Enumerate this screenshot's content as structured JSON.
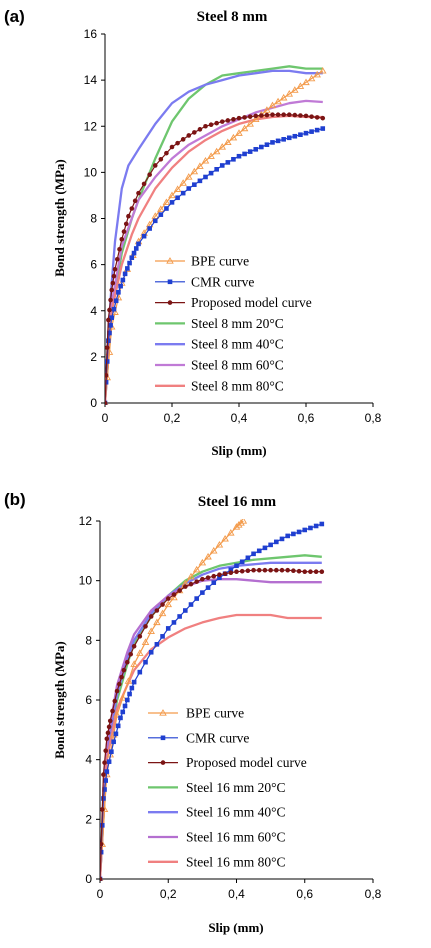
{
  "chart_data": [
    {
      "type": "line",
      "panel_label": "(a)",
      "title": "Steel 8 mm",
      "xlabel": "Slip (mm)",
      "ylabel": "Bond strength (MPa)",
      "xlim": [
        0,
        0.8
      ],
      "ylim": [
        0,
        16
      ],
      "x_ticks": [
        "0",
        "0,2",
        "0,4",
        "0,6",
        "0,8"
      ],
      "y_ticks": [
        "0",
        "2",
        "4",
        "6",
        "8",
        "10",
        "12",
        "14",
        "16"
      ],
      "legend_position": "center",
      "series": [
        {
          "name": "BPE curve",
          "color": "#f39a4a",
          "marker": "open-triangle",
          "x": [
            0,
            0.02,
            0.05,
            0.1,
            0.15,
            0.2,
            0.25,
            0.3,
            0.35,
            0.4,
            0.45,
            0.5,
            0.55,
            0.6,
            0.65
          ],
          "y": [
            0,
            3.3,
            5.2,
            7.0,
            8.1,
            9.0,
            9.8,
            10.5,
            11.1,
            11.7,
            12.3,
            12.9,
            13.4,
            13.9,
            14.4
          ]
        },
        {
          "name": "CMR curve",
          "color": "#1f3fd0",
          "marker": "filled-square",
          "x": [
            0,
            0.01,
            0.02,
            0.04,
            0.06,
            0.08,
            0.1,
            0.15,
            0.2,
            0.25,
            0.3,
            0.35,
            0.4,
            0.45,
            0.5,
            0.55,
            0.6,
            0.65
          ],
          "y": [
            0,
            2.7,
            3.7,
            4.8,
            5.6,
            6.3,
            6.9,
            7.9,
            8.7,
            9.3,
            9.8,
            10.3,
            10.7,
            11.0,
            11.3,
            11.5,
            11.7,
            11.9
          ]
        },
        {
          "name": "Proposed model curve",
          "color": "#7b1414",
          "marker": "filled-circle",
          "x": [
            0,
            0.01,
            0.02,
            0.03,
            0.05,
            0.07,
            0.1,
            0.15,
            0.2,
            0.25,
            0.3,
            0.35,
            0.4,
            0.45,
            0.5,
            0.55,
            0.6,
            0.65
          ],
          "y": [
            0,
            3.6,
            4.9,
            5.8,
            7.1,
            8.1,
            9.1,
            10.3,
            11.1,
            11.6,
            12.0,
            12.2,
            12.35,
            12.45,
            12.5,
            12.5,
            12.45,
            12.35
          ]
        },
        {
          "name": "Steel 8 mm 20°C",
          "color": "#6ec66e",
          "marker": "none",
          "x": [
            0,
            0.02,
            0.05,
            0.08,
            0.1,
            0.15,
            0.2,
            0.25,
            0.3,
            0.35,
            0.4,
            0.45,
            0.5,
            0.55,
            0.6,
            0.65
          ],
          "y": [
            0,
            4.0,
            6.5,
            8.0,
            8.8,
            10.6,
            12.2,
            13.2,
            13.8,
            14.2,
            14.3,
            14.4,
            14.5,
            14.6,
            14.5,
            14.5
          ]
        },
        {
          "name": "Steel 8 mm 40°C",
          "color": "#7b7bf0",
          "marker": "none",
          "x": [
            0,
            0.01,
            0.02,
            0.03,
            0.05,
            0.07,
            0.1,
            0.15,
            0.2,
            0.25,
            0.3,
            0.35,
            0.4,
            0.45,
            0.5,
            0.55,
            0.6,
            0.65
          ],
          "y": [
            0,
            3.0,
            5.2,
            7.0,
            9.3,
            10.3,
            11.0,
            12.1,
            13.0,
            13.5,
            13.8,
            14.0,
            14.2,
            14.3,
            14.4,
            14.4,
            14.3,
            14.3
          ]
        },
        {
          "name": "Steel 8 mm 60°C",
          "color": "#c07ad6",
          "marker": "none",
          "x": [
            0,
            0.02,
            0.05,
            0.1,
            0.15,
            0.2,
            0.25,
            0.3,
            0.35,
            0.4,
            0.45,
            0.5,
            0.55,
            0.6,
            0.65
          ],
          "y": [
            0,
            4.3,
            6.8,
            8.8,
            9.8,
            10.6,
            11.2,
            11.6,
            12.0,
            12.3,
            12.6,
            12.8,
            13.0,
            13.1,
            13.05
          ]
        },
        {
          "name": "Steel 8 mm 80°C",
          "color": "#f08080",
          "marker": "none",
          "x": [
            0,
            0.02,
            0.05,
            0.08,
            0.1,
            0.15,
            0.2,
            0.25,
            0.3,
            0.35,
            0.4,
            0.45,
            0.5,
            0.55,
            0.6,
            0.65
          ],
          "y": [
            0,
            4.0,
            6.0,
            7.3,
            8.0,
            9.3,
            10.2,
            10.9,
            11.4,
            11.8,
            12.1,
            12.3,
            12.4,
            12.45,
            12.4,
            12.4
          ]
        }
      ]
    },
    {
      "type": "line",
      "panel_label": "(b)",
      "title": "Steel 16 mm",
      "xlabel": "Slip (mm)",
      "ylabel": "Bond strength (MPa)",
      "xlim": [
        0,
        0.8
      ],
      "ylim": [
        0,
        12
      ],
      "x_ticks": [
        "0",
        "0,2",
        "0,4",
        "0,6",
        "0,8"
      ],
      "y_ticks": [
        "0",
        "2",
        "4",
        "6",
        "8",
        "10",
        "12"
      ],
      "legend_position": "lower-center",
      "series": [
        {
          "name": "BPE curve",
          "color": "#f39a4a",
          "marker": "open-triangle",
          "x": [
            0,
            0.02,
            0.05,
            0.1,
            0.15,
            0.2,
            0.25,
            0.3,
            0.35,
            0.4,
            0.42
          ],
          "y": [
            0,
            3.5,
            5.5,
            7.2,
            8.3,
            9.2,
            9.9,
            10.6,
            11.2,
            11.8,
            12.0
          ]
        },
        {
          "name": "CMR curve",
          "color": "#1f3fd0",
          "marker": "filled-square",
          "x": [
            0,
            0.01,
            0.02,
            0.04,
            0.06,
            0.08,
            0.1,
            0.15,
            0.2,
            0.25,
            0.3,
            0.35,
            0.4,
            0.45,
            0.5,
            0.55,
            0.6,
            0.65
          ],
          "y": [
            0,
            2.7,
            3.6,
            4.6,
            5.4,
            6.0,
            6.6,
            7.6,
            8.4,
            9.0,
            9.6,
            10.1,
            10.5,
            10.9,
            11.2,
            11.5,
            11.7,
            11.9
          ]
        },
        {
          "name": "Proposed model curve",
          "color": "#7b1414",
          "marker": "filled-circle",
          "x": [
            0,
            0.01,
            0.02,
            0.03,
            0.05,
            0.07,
            0.1,
            0.15,
            0.2,
            0.25,
            0.3,
            0.35,
            0.4,
            0.45,
            0.5,
            0.55,
            0.6,
            0.65
          ],
          "y": [
            0,
            3.5,
            4.7,
            5.3,
            6.3,
            7.0,
            7.8,
            8.8,
            9.4,
            9.8,
            10.05,
            10.2,
            10.3,
            10.35,
            10.35,
            10.35,
            10.3,
            10.3
          ]
        },
        {
          "name": "Steel  16 mm 20°C",
          "color": "#6ec66e",
          "marker": "none",
          "x": [
            0,
            0.02,
            0.05,
            0.08,
            0.1,
            0.15,
            0.2,
            0.25,
            0.3,
            0.35,
            0.4,
            0.45,
            0.5,
            0.55,
            0.6,
            0.65
          ],
          "y": [
            0,
            4.0,
            6.0,
            7.2,
            7.9,
            8.8,
            9.5,
            10.0,
            10.3,
            10.5,
            10.6,
            10.7,
            10.75,
            10.8,
            10.85,
            10.8
          ]
        },
        {
          "name": "Steel 16 mm 40°C",
          "color": "#7b7bf0",
          "marker": "none",
          "x": [
            0,
            0.02,
            0.05,
            0.08,
            0.1,
            0.15,
            0.2,
            0.25,
            0.3,
            0.35,
            0.4,
            0.45,
            0.5,
            0.55,
            0.6,
            0.65
          ],
          "y": [
            0,
            4.2,
            6.2,
            7.4,
            8.0,
            8.9,
            9.5,
            9.9,
            10.2,
            10.4,
            10.5,
            10.55,
            10.6,
            10.6,
            10.6,
            10.6
          ]
        },
        {
          "name": "Steel 16 mm 60°C",
          "color": "#b46fd0",
          "marker": "none",
          "x": [
            0,
            0.02,
            0.05,
            0.08,
            0.1,
            0.15,
            0.2,
            0.25,
            0.3,
            0.35,
            0.4,
            0.45,
            0.5,
            0.55,
            0.6,
            0.65
          ],
          "y": [
            0,
            4.5,
            6.5,
            7.6,
            8.2,
            9.0,
            9.5,
            9.8,
            10.0,
            10.05,
            10.05,
            10.0,
            9.95,
            9.95,
            9.95,
            9.95
          ]
        },
        {
          "name": "Steel 16 mm 80°C",
          "color": "#f08080",
          "marker": "none",
          "x": [
            0,
            0.02,
            0.05,
            0.08,
            0.1,
            0.15,
            0.2,
            0.25,
            0.3,
            0.35,
            0.4,
            0.45,
            0.5,
            0.55,
            0.6,
            0.65
          ],
          "y": [
            0,
            4.0,
            5.7,
            6.5,
            7.0,
            7.7,
            8.1,
            8.4,
            8.6,
            8.75,
            8.85,
            8.85,
            8.85,
            8.75,
            8.75,
            8.75
          ]
        }
      ]
    }
  ]
}
